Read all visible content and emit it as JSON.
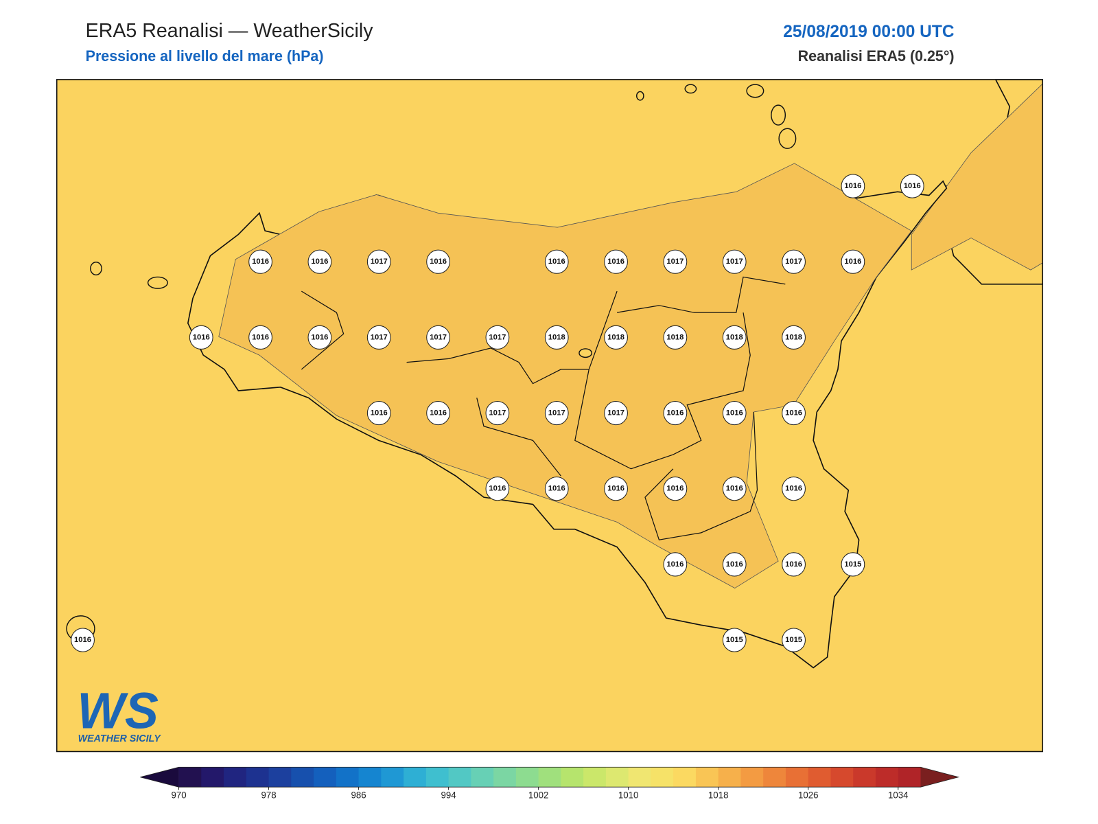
{
  "header": {
    "title": "ERA5 Reanalisi — WeatherSicily",
    "subtitle": "Pressione al livello del mare (hPa)",
    "date": "25/08/2019 00:00 UTC",
    "source": "Reanalisi ERA5 (0.25°)"
  },
  "grid": [
    [
      null,
      null,
      null,
      null,
      null,
      null,
      null,
      null,
      null,
      null,
      null,
      null,
      null,
      1016,
      1016
    ],
    [
      null,
      null,
      null,
      1016,
      1016,
      1017,
      1016,
      null,
      1016,
      1016,
      1017,
      1017,
      1017,
      1016,
      null
    ],
    [
      null,
      null,
      1016,
      1016,
      1016,
      1017,
      1017,
      1017,
      1018,
      1018,
      1018,
      1018,
      1018,
      null,
      null
    ],
    [
      null,
      null,
      null,
      null,
      null,
      1016,
      1016,
      1017,
      1017,
      1017,
      1016,
      1016,
      1016,
      null,
      null
    ],
    [
      null,
      null,
      null,
      null,
      null,
      null,
      null,
      1016,
      1016,
      1016,
      1016,
      1016,
      1016,
      null,
      null
    ],
    [
      null,
      null,
      null,
      null,
      null,
      null,
      null,
      null,
      null,
      null,
      1016,
      1016,
      1016,
      1015,
      null
    ],
    [
      1016,
      null,
      null,
      null,
      null,
      null,
      null,
      null,
      null,
      null,
      null,
      1015,
      1015,
      null,
      null
    ]
  ],
  "colorbar": {
    "lim": [
      970,
      1036
    ],
    "ticks": [
      970,
      978,
      986,
      994,
      1002,
      1010,
      1018,
      1026,
      1034
    ],
    "under_color": "#1a0a3d",
    "over_color": "#7a1f1f",
    "colors": [
      "#221150",
      "#23186a",
      "#202580",
      "#1d3290",
      "#1c409e",
      "#1750ad",
      "#1460bd",
      "#1272c8",
      "#1585d0",
      "#1f98d4",
      "#2eafd4",
      "#3fbfcf",
      "#52c8c4",
      "#67d0b5",
      "#7bd6a3",
      "#8ddc90",
      "#a0e07d",
      "#b6e46d",
      "#cbe76a",
      "#dde870",
      "#f0e671",
      "#f6e268",
      "#fbd961",
      "#f9c555",
      "#f6b04b",
      "#f39b42",
      "#ee863b",
      "#e87035",
      "#e05c30",
      "#d6492d",
      "#ca392b",
      "#bd2c29",
      "#b02428"
    ]
  },
  "logo": {
    "mark": "WS",
    "text": "WEATHER SICILY"
  }
}
